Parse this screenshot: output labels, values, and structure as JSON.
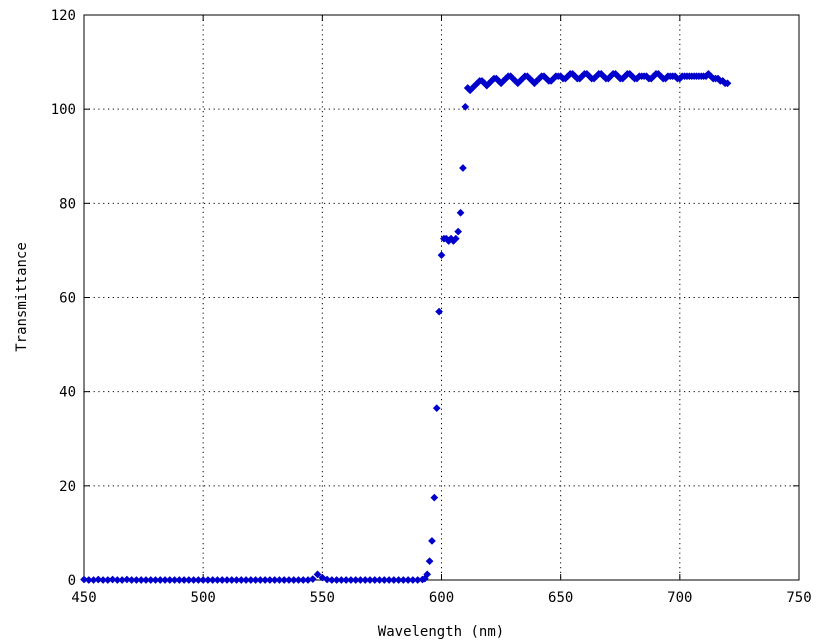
{
  "chart_data": {
    "type": "scatter",
    "title": "",
    "xlabel": "Wavelength (nm)",
    "ylabel": "Transmittance",
    "xlim": [
      450,
      750
    ],
    "ylim": [
      0,
      120
    ],
    "xticks": [
      450,
      500,
      550,
      600,
      650,
      700,
      750
    ],
    "yticks": [
      0,
      20,
      40,
      60,
      80,
      100,
      120
    ],
    "xtick_labels": [
      "450",
      "500",
      "550",
      "600",
      "650",
      "700",
      "750"
    ],
    "ytick_labels": [
      "0",
      "20",
      "40",
      "60",
      "80",
      "100",
      "120"
    ],
    "grid": true,
    "marker": "diamond",
    "colors": {
      "series": "#0000cc",
      "axes": "#000000",
      "background": "#ffffff"
    },
    "series": [
      {
        "points": [
          [
            450,
            0.1
          ],
          [
            452,
            0
          ],
          [
            454,
            0
          ],
          [
            456,
            0.1
          ],
          [
            458,
            0
          ],
          [
            460,
            0
          ],
          [
            462,
            0.1
          ],
          [
            464,
            0
          ],
          [
            466,
            0
          ],
          [
            468,
            0.1
          ],
          [
            470,
            0
          ],
          [
            472,
            0
          ],
          [
            474,
            0
          ],
          [
            476,
            0
          ],
          [
            478,
            0
          ],
          [
            480,
            0
          ],
          [
            482,
            0
          ],
          [
            484,
            0
          ],
          [
            486,
            0
          ],
          [
            488,
            0
          ],
          [
            490,
            0
          ],
          [
            492,
            0
          ],
          [
            494,
            0
          ],
          [
            496,
            0
          ],
          [
            498,
            0
          ],
          [
            500,
            0
          ],
          [
            502,
            0
          ],
          [
            504,
            0
          ],
          [
            506,
            0
          ],
          [
            508,
            0
          ],
          [
            510,
            0
          ],
          [
            512,
            0
          ],
          [
            514,
            0
          ],
          [
            516,
            0
          ],
          [
            518,
            0
          ],
          [
            520,
            0
          ],
          [
            522,
            0
          ],
          [
            524,
            0
          ],
          [
            526,
            0
          ],
          [
            528,
            0
          ],
          [
            530,
            0
          ],
          [
            532,
            0
          ],
          [
            534,
            0
          ],
          [
            536,
            0
          ],
          [
            538,
            0
          ],
          [
            540,
            0
          ],
          [
            542,
            0
          ],
          [
            544,
            0
          ],
          [
            546,
            0.2
          ],
          [
            548,
            1.2
          ],
          [
            550,
            0.5
          ],
          [
            552,
            0.1
          ],
          [
            554,
            0
          ],
          [
            556,
            0
          ],
          [
            558,
            0
          ],
          [
            560,
            0
          ],
          [
            562,
            0
          ],
          [
            564,
            0
          ],
          [
            566,
            0
          ],
          [
            568,
            0
          ],
          [
            570,
            0
          ],
          [
            572,
            0
          ],
          [
            574,
            0
          ],
          [
            576,
            0
          ],
          [
            578,
            0
          ],
          [
            580,
            0
          ],
          [
            582,
            0
          ],
          [
            584,
            0
          ],
          [
            586,
            0
          ],
          [
            588,
            0
          ],
          [
            590,
            0
          ],
          [
            592,
            0.1
          ],
          [
            593,
            0.3
          ],
          [
            594,
            1.2
          ],
          [
            595,
            4
          ],
          [
            596,
            8.3
          ],
          [
            597,
            17.5
          ],
          [
            598,
            36.5
          ],
          [
            599,
            57
          ],
          [
            600,
            69
          ],
          [
            601,
            72.5
          ],
          [
            602,
            72.5
          ],
          [
            603,
            72
          ],
          [
            604,
            72.5
          ],
          [
            605,
            72
          ],
          [
            606,
            72.5
          ],
          [
            607,
            74
          ],
          [
            608,
            78
          ],
          [
            609,
            87.5
          ],
          [
            610,
            100.5
          ],
          [
            611,
            104.5
          ],
          [
            612,
            104
          ],
          [
            613,
            104.5
          ],
          [
            614,
            105
          ],
          [
            615,
            105.5
          ],
          [
            616,
            106
          ],
          [
            617,
            106
          ],
          [
            618,
            105.5
          ],
          [
            619,
            105
          ],
          [
            620,
            105.5
          ],
          [
            621,
            106
          ],
          [
            622,
            106.5
          ],
          [
            623,
            106.5
          ],
          [
            624,
            106
          ],
          [
            625,
            105.5
          ],
          [
            626,
            106
          ],
          [
            627,
            106.5
          ],
          [
            628,
            107
          ],
          [
            629,
            107
          ],
          [
            630,
            106.5
          ],
          [
            631,
            106
          ],
          [
            632,
            105.5
          ],
          [
            633,
            106
          ],
          [
            634,
            106.5
          ],
          [
            635,
            107
          ],
          [
            636,
            107
          ],
          [
            637,
            106.5
          ],
          [
            638,
            106
          ],
          [
            639,
            105.5
          ],
          [
            640,
            106
          ],
          [
            641,
            106.5
          ],
          [
            642,
            107
          ],
          [
            643,
            107
          ],
          [
            644,
            106.5
          ],
          [
            645,
            106
          ],
          [
            646,
            106
          ],
          [
            647,
            106.5
          ],
          [
            648,
            107
          ],
          [
            649,
            107
          ],
          [
            650,
            107
          ],
          [
            651,
            106.5
          ],
          [
            652,
            106.5
          ],
          [
            653,
            107
          ],
          [
            654,
            107.5
          ],
          [
            655,
            107.5
          ],
          [
            656,
            107
          ],
          [
            657,
            106.5
          ],
          [
            658,
            106.5
          ],
          [
            659,
            107
          ],
          [
            660,
            107.5
          ],
          [
            661,
            107.5
          ],
          [
            662,
            107
          ],
          [
            663,
            106.5
          ],
          [
            664,
            106.5
          ],
          [
            665,
            107
          ],
          [
            666,
            107.5
          ],
          [
            667,
            107.5
          ],
          [
            668,
            107
          ],
          [
            669,
            106.5
          ],
          [
            670,
            106.5
          ],
          [
            671,
            107
          ],
          [
            672,
            107.5
          ],
          [
            673,
            107.5
          ],
          [
            674,
            107
          ],
          [
            675,
            106.5
          ],
          [
            676,
            106.5
          ],
          [
            677,
            107
          ],
          [
            678,
            107.5
          ],
          [
            679,
            107.5
          ],
          [
            680,
            107
          ],
          [
            681,
            106.5
          ],
          [
            682,
            106.5
          ],
          [
            683,
            107
          ],
          [
            684,
            107
          ],
          [
            685,
            107
          ],
          [
            686,
            107
          ],
          [
            687,
            106.5
          ],
          [
            688,
            106.5
          ],
          [
            689,
            107
          ],
          [
            690,
            107.5
          ],
          [
            691,
            107.5
          ],
          [
            692,
            107
          ],
          [
            693,
            106.5
          ],
          [
            694,
            106.5
          ],
          [
            695,
            107
          ],
          [
            696,
            107
          ],
          [
            697,
            107
          ],
          [
            698,
            107
          ],
          [
            699,
            106.5
          ],
          [
            700,
            106.5
          ],
          [
            701,
            107
          ],
          [
            702,
            107
          ],
          [
            703,
            107
          ],
          [
            704,
            107
          ],
          [
            705,
            107
          ],
          [
            706,
            107
          ],
          [
            707,
            107
          ],
          [
            708,
            107
          ],
          [
            709,
            107
          ],
          [
            710,
            107
          ],
          [
            711,
            107
          ],
          [
            712,
            107.5
          ],
          [
            713,
            107
          ],
          [
            714,
            106.5
          ],
          [
            715,
            106.5
          ],
          [
            716,
            106.5
          ],
          [
            717,
            106
          ],
          [
            718,
            106
          ],
          [
            719,
            105.5
          ],
          [
            720,
            105.5
          ]
        ]
      }
    ]
  }
}
